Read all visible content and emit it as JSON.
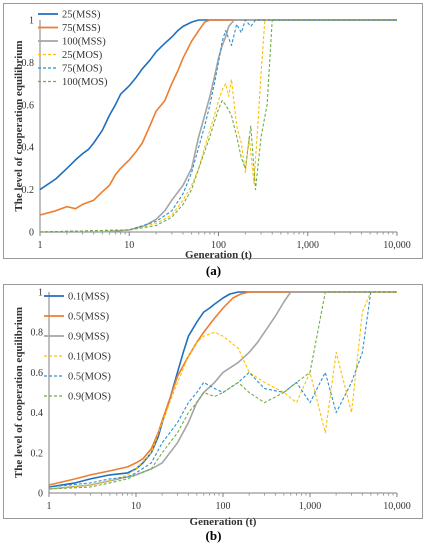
{
  "chart_data": [
    {
      "panel_label": "(a)",
      "type": "line",
      "xlabel": "Generation (t)",
      "ylabel": "The level of cooperation equilibrium",
      "xscale": "log",
      "xlim": [
        1,
        10000
      ],
      "ylim": [
        0,
        1
      ],
      "xticks": [
        1,
        10,
        100,
        1000,
        10000
      ],
      "xtick_labels": [
        "1",
        "10",
        "100",
        "1,000",
        "10,000"
      ],
      "yticks": [
        0,
        0.2,
        0.4,
        0.6,
        0.8,
        1
      ],
      "ytick_labels": [
        "0",
        "0.2",
        "0.4",
        "0.6",
        "0.8",
        "1"
      ],
      "grid": false,
      "legend": "top-left",
      "series": [
        {
          "name": "25(MSS)",
          "color": "#1f6fbf",
          "dash": "solid",
          "x": [
            1,
            1.5,
            2,
            2.5,
            3,
            3.5,
            4,
            5,
            6,
            7,
            8,
            10,
            12,
            14,
            17,
            20,
            25,
            30,
            35,
            40,
            50,
            60,
            10000
          ],
          "y": [
            0.2,
            0.25,
            0.3,
            0.34,
            0.37,
            0.39,
            0.42,
            0.48,
            0.55,
            0.6,
            0.65,
            0.69,
            0.73,
            0.77,
            0.81,
            0.85,
            0.89,
            0.92,
            0.95,
            0.97,
            0.99,
            1,
            1
          ]
        },
        {
          "name": "75(MSS)",
          "color": "#ed7d31",
          "dash": "solid",
          "x": [
            1,
            1.5,
            2,
            2.5,
            3,
            4,
            5,
            6,
            7,
            8,
            10,
            12,
            14,
            17,
            20,
            25,
            30,
            35,
            40,
            50,
            60,
            70,
            80,
            10000
          ],
          "y": [
            0.08,
            0.1,
            0.12,
            0.11,
            0.13,
            0.15,
            0.19,
            0.22,
            0.27,
            0.3,
            0.34,
            0.38,
            0.42,
            0.5,
            0.57,
            0.62,
            0.7,
            0.76,
            0.82,
            0.9,
            0.95,
            0.99,
            1,
            1
          ]
        },
        {
          "name": "100(MSS)",
          "color": "#a5a5a5",
          "dash": "solid",
          "x": [
            1,
            5,
            10,
            15,
            20,
            25,
            30,
            40,
            50,
            60,
            70,
            80,
            90,
            100,
            110,
            120,
            130,
            150,
            10000
          ],
          "y": [
            0,
            0,
            0.01,
            0.03,
            0.06,
            0.1,
            0.15,
            0.22,
            0.3,
            0.45,
            0.55,
            0.64,
            0.73,
            0.82,
            0.88,
            0.92,
            0.97,
            1,
            1
          ]
        },
        {
          "name": "25(MOS)",
          "color": "#ffc000",
          "dash": "dashed",
          "x": [
            1,
            10,
            20,
            30,
            40,
            50,
            60,
            70,
            80,
            90,
            100,
            110,
            120,
            130,
            140,
            150,
            160,
            180,
            200,
            220,
            250,
            280,
            300,
            330,
            10000
          ],
          "y": [
            0,
            0.01,
            0.04,
            0.08,
            0.15,
            0.22,
            0.3,
            0.4,
            0.48,
            0.55,
            0.62,
            0.67,
            0.7,
            0.64,
            0.72,
            0.6,
            0.5,
            0.42,
            0.28,
            0.45,
            0.23,
            0.55,
            0.75,
            1,
            1
          ]
        },
        {
          "name": "75(MOS)",
          "color": "#2e8fcf",
          "dash": "dashed",
          "x": [
            1,
            10,
            20,
            30,
            40,
            50,
            60,
            70,
            80,
            90,
            100,
            110,
            120,
            140,
            160,
            180,
            200,
            230,
            260,
            10000
          ],
          "y": [
            0,
            0.01,
            0.05,
            0.1,
            0.18,
            0.28,
            0.4,
            0.5,
            0.6,
            0.7,
            0.8,
            0.9,
            0.95,
            0.88,
            0.98,
            0.94,
            1,
            0.97,
            1,
            1
          ]
        },
        {
          "name": "100(MOS)",
          "color": "#70ad47",
          "dash": "dashed",
          "x": [
            1,
            10,
            20,
            30,
            40,
            50,
            60,
            70,
            80,
            90,
            100,
            110,
            120,
            140,
            160,
            180,
            200,
            230,
            260,
            300,
            350,
            400,
            10000
          ],
          "y": [
            0,
            0.01,
            0.03,
            0.07,
            0.13,
            0.2,
            0.3,
            0.38,
            0.45,
            0.52,
            0.58,
            0.62,
            0.6,
            0.55,
            0.45,
            0.35,
            0.3,
            0.5,
            0.2,
            0.45,
            0.6,
            1,
            1
          ]
        }
      ]
    },
    {
      "panel_label": "(b)",
      "type": "line",
      "xlabel": "Generation (t)",
      "ylabel": "The level of cooperation equilibrium",
      "xscale": "log",
      "xlim": [
        1,
        10000
      ],
      "ylim": [
        0,
        1
      ],
      "xticks": [
        1,
        10,
        100,
        1000,
        10000
      ],
      "xtick_labels": [
        "1",
        "10",
        "100",
        "1,000",
        "10,000"
      ],
      "yticks": [
        0,
        0.2,
        0.4,
        0.6,
        0.8,
        1
      ],
      "ytick_labels": [
        "0",
        "0.2",
        "0.4",
        "0.6",
        "0.8",
        "1"
      ],
      "grid": false,
      "legend": "top-left",
      "series": [
        {
          "name": "0.1(MSS)",
          "color": "#1f6fbf",
          "dash": "solid",
          "x": [
            1,
            2,
            3,
            5,
            8,
            10,
            12,
            15,
            18,
            20,
            25,
            30,
            35,
            40,
            50,
            60,
            70,
            80,
            100,
            120,
            150,
            10000
          ],
          "y": [
            0.03,
            0.05,
            0.07,
            0.09,
            0.1,
            0.12,
            0.15,
            0.2,
            0.28,
            0.35,
            0.48,
            0.6,
            0.7,
            0.78,
            0.85,
            0.9,
            0.92,
            0.94,
            0.97,
            0.99,
            1,
            1
          ]
        },
        {
          "name": "0.5(MSS)",
          "color": "#ed7d31",
          "dash": "solid",
          "x": [
            1,
            2,
            3,
            5,
            8,
            10,
            12,
            15,
            18,
            20,
            25,
            30,
            40,
            50,
            60,
            80,
            100,
            130,
            160,
            200,
            10000
          ],
          "y": [
            0.04,
            0.07,
            0.09,
            0.11,
            0.13,
            0.15,
            0.17,
            0.22,
            0.3,
            0.36,
            0.48,
            0.58,
            0.68,
            0.75,
            0.8,
            0.87,
            0.92,
            0.97,
            0.99,
            1,
            1
          ]
        },
        {
          "name": "0.9(MSS)",
          "color": "#a5a5a5",
          "dash": "solid",
          "x": [
            1,
            3,
            5,
            8,
            10,
            15,
            20,
            30,
            40,
            50,
            60,
            80,
            100,
            150,
            200,
            250,
            300,
            400,
            500,
            600,
            10000
          ],
          "y": [
            0.02,
            0.04,
            0.06,
            0.08,
            0.09,
            0.12,
            0.15,
            0.25,
            0.35,
            0.45,
            0.5,
            0.55,
            0.6,
            0.65,
            0.7,
            0.75,
            0.8,
            0.88,
            0.95,
            1,
            1
          ]
        },
        {
          "name": "0.1(MOS)",
          "color": "#ffc000",
          "dash": "dashed",
          "x": [
            1,
            3,
            5,
            8,
            10,
            15,
            20,
            30,
            40,
            50,
            60,
            80,
            100,
            150,
            200,
            300,
            500,
            700,
            1000,
            1500,
            2000,
            3000,
            4000,
            5000,
            10000
          ],
          "y": [
            0.02,
            0.04,
            0.06,
            0.09,
            0.12,
            0.2,
            0.35,
            0.55,
            0.68,
            0.75,
            0.78,
            0.8,
            0.78,
            0.72,
            0.6,
            0.55,
            0.5,
            0.45,
            0.6,
            0.3,
            0.7,
            0.4,
            0.9,
            1,
            1
          ]
        },
        {
          "name": "0.5(MOS)",
          "color": "#2e8fcf",
          "dash": "dashed",
          "x": [
            1,
            3,
            5,
            8,
            10,
            15,
            20,
            30,
            40,
            50,
            60,
            80,
            100,
            150,
            200,
            300,
            500,
            700,
            1000,
            1500,
            2000,
            3000,
            4000,
            5000,
            10000
          ],
          "y": [
            0.03,
            0.05,
            0.07,
            0.08,
            0.1,
            0.15,
            0.25,
            0.35,
            0.45,
            0.5,
            0.55,
            0.52,
            0.5,
            0.55,
            0.6,
            0.52,
            0.5,
            0.55,
            0.45,
            0.6,
            0.4,
            0.55,
            0.7,
            1,
            1
          ]
        },
        {
          "name": "0.9(MOS)",
          "color": "#70ad47",
          "dash": "dashed",
          "x": [
            1,
            3,
            5,
            8,
            10,
            15,
            20,
            30,
            40,
            50,
            60,
            80,
            100,
            150,
            200,
            300,
            500,
            700,
            1000,
            1500,
            10000
          ],
          "y": [
            0.02,
            0.03,
            0.05,
            0.07,
            0.09,
            0.12,
            0.2,
            0.3,
            0.4,
            0.45,
            0.5,
            0.48,
            0.5,
            0.55,
            0.5,
            0.45,
            0.5,
            0.55,
            0.6,
            1,
            1
          ]
        }
      ]
    }
  ]
}
